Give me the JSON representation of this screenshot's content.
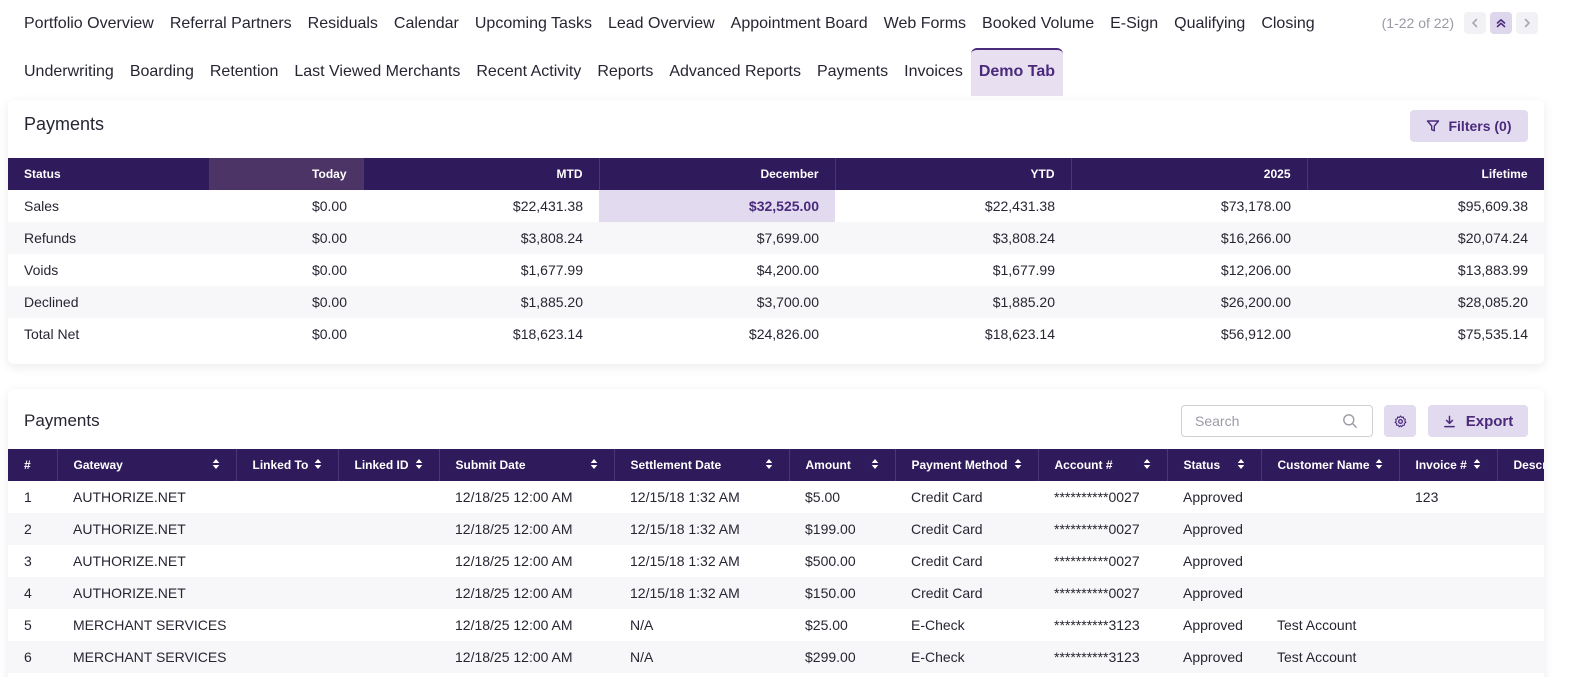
{
  "tabs": {
    "row1": [
      "Portfolio Overview",
      "Referral Partners",
      "Residuals",
      "Calendar",
      "Upcoming Tasks",
      "Lead Overview",
      "Appointment Board",
      "Web Forms",
      "Booked Volume",
      "E-Sign",
      "Qualifying",
      "Closing"
    ],
    "row2": [
      "Underwriting",
      "Boarding",
      "Retention",
      "Last Viewed Merchants",
      "Recent Activity",
      "Reports",
      "Advanced Reports",
      "Payments",
      "Invoices",
      "Demo Tab"
    ],
    "active": "Demo Tab"
  },
  "pager": {
    "count": "(1-22 of 22)"
  },
  "summary": {
    "title": "Payments",
    "filters_label": "Filters (0)",
    "columns": [
      "Status",
      "Today",
      "MTD",
      "December",
      "YTD",
      "2025",
      "Lifetime"
    ],
    "rows": [
      [
        "Sales",
        "$0.00",
        "$22,431.38",
        "$32,525.00",
        "$22,431.38",
        "$73,178.00",
        "$95,609.38"
      ],
      [
        "Refunds",
        "$0.00",
        "$3,808.24",
        "$7,699.00",
        "$3,808.24",
        "$16,266.00",
        "$20,074.24"
      ],
      [
        "Voids",
        "$0.00",
        "$1,677.99",
        "$4,200.00",
        "$1,677.99",
        "$12,206.00",
        "$13,883.99"
      ],
      [
        "Declined",
        "$0.00",
        "$1,885.20",
        "$3,700.00",
        "$1,885.20",
        "$26,200.00",
        "$28,085.20"
      ],
      [
        "Total Net",
        "$0.00",
        "$18,623.14",
        "$24,826.00",
        "$18,623.14",
        "$56,912.00",
        "$75,535.14"
      ]
    ]
  },
  "payments": {
    "title": "Payments",
    "search_placeholder": "Search",
    "export_label": "Export",
    "columns": [
      "#",
      "Gateway",
      "Linked To",
      "Linked ID",
      "Submit Date",
      "Settlement Date",
      "Amount",
      "Payment Method",
      "Account #",
      "Status",
      "Customer Name",
      "Invoice #",
      "Descr"
    ],
    "rows": [
      [
        "1",
        "AUTHORIZE.NET",
        "",
        "",
        "12/18/25 12:00 AM",
        "12/15/18 1:32 AM",
        "$5.00",
        "Credit Card",
        "**********0027",
        "Approved",
        "",
        "123",
        ""
      ],
      [
        "2",
        "AUTHORIZE.NET",
        "",
        "",
        "12/18/25 12:00 AM",
        "12/15/18 1:32 AM",
        "$199.00",
        "Credit Card",
        "**********0027",
        "Approved",
        "",
        "",
        ""
      ],
      [
        "3",
        "AUTHORIZE.NET",
        "",
        "",
        "12/18/25 12:00 AM",
        "12/15/18 1:32 AM",
        "$500.00",
        "Credit Card",
        "**********0027",
        "Approved",
        "",
        "",
        ""
      ],
      [
        "4",
        "AUTHORIZE.NET",
        "",
        "",
        "12/18/25 12:00 AM",
        "12/15/18 1:32 AM",
        "$150.00",
        "Credit Card",
        "**********0027",
        "Approved",
        "",
        "",
        ""
      ],
      [
        "5",
        "MERCHANT SERVICES",
        "",
        "",
        "12/18/25 12:00 AM",
        "N/A",
        "$25.00",
        "E-Check",
        "**********3123",
        "Approved",
        "Test Account",
        "",
        ""
      ],
      [
        "6",
        "MERCHANT SERVICES",
        "",
        "",
        "12/18/25 12:00 AM",
        "N/A",
        "$299.00",
        "E-Check",
        "**********3123",
        "Approved",
        "Test Account",
        "",
        ""
      ]
    ]
  },
  "theme": {
    "header_bg": "#2f1a5c",
    "accent": "#4b2a7c",
    "accent_soft": "#e2daef"
  }
}
